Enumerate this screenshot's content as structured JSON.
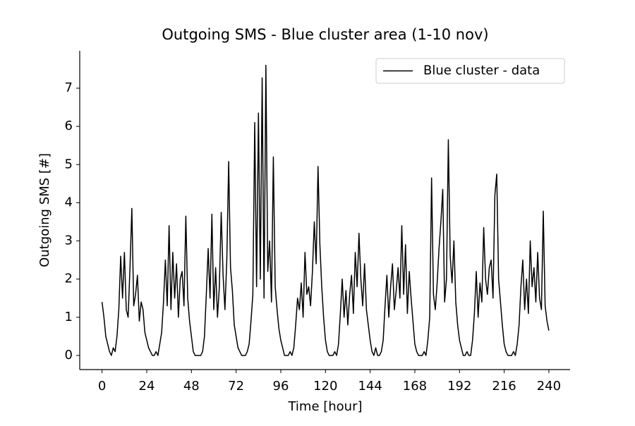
{
  "chart_data": {
    "type": "line",
    "title": "Outgoing SMS - Blue cluster area (1-10 nov)",
    "xlabel": "Time [hour]",
    "ylabel": "Outgoing SMS [#]",
    "legend": "upper right",
    "xlim": [
      -12,
      251.4
    ],
    "ylim": [
      -0.37,
      7.98
    ],
    "xticks": [
      0,
      24,
      48,
      72,
      96,
      120,
      144,
      168,
      192,
      216,
      240
    ],
    "yticks": [
      0,
      1,
      2,
      3,
      4,
      5,
      6,
      7
    ],
    "x": [
      0,
      1,
      2,
      3,
      4,
      5,
      6,
      7,
      8,
      9,
      10,
      11,
      12,
      13,
      14,
      15,
      16,
      17,
      18,
      19,
      20,
      21,
      22,
      23,
      24,
      25,
      26,
      27,
      28,
      29,
      30,
      31,
      32,
      33,
      34,
      35,
      36,
      37,
      38,
      39,
      40,
      41,
      42,
      43,
      44,
      45,
      46,
      47,
      48,
      49,
      50,
      51,
      52,
      53,
      54,
      55,
      56,
      57,
      58,
      59,
      60,
      61,
      62,
      63,
      64,
      65,
      66,
      67,
      68,
      69,
      70,
      71,
      72,
      73,
      74,
      75,
      76,
      77,
      78,
      79,
      80,
      81,
      82,
      83,
      84,
      85,
      86,
      87,
      88,
      89,
      90,
      91,
      92,
      93,
      94,
      95,
      96,
      97,
      98,
      99,
      100,
      101,
      102,
      103,
      104,
      105,
      106,
      107,
      108,
      109,
      110,
      111,
      112,
      113,
      114,
      115,
      116,
      117,
      118,
      119,
      120,
      121,
      122,
      123,
      124,
      125,
      126,
      127,
      128,
      129,
      130,
      131,
      132,
      133,
      134,
      135,
      136,
      137,
      138,
      139,
      140,
      141,
      142,
      143,
      144,
      145,
      146,
      147,
      148,
      149,
      150,
      151,
      152,
      153,
      154,
      155,
      156,
      157,
      158,
      159,
      160,
      161,
      162,
      163,
      164,
      165,
      166,
      167,
      168,
      169,
      170,
      171,
      172,
      173,
      174,
      175,
      176,
      177,
      178,
      179,
      180,
      181,
      182,
      183,
      184,
      185,
      186,
      187,
      188,
      189,
      190,
      191,
      192,
      193,
      194,
      195,
      196,
      197,
      198,
      199,
      200,
      201,
      202,
      203,
      204,
      205,
      206,
      207,
      208,
      209,
      210,
      211,
      212,
      213,
      214,
      215,
      216,
      217,
      218,
      219,
      220,
      221,
      222,
      223,
      224,
      225,
      226,
      227,
      228,
      229,
      230,
      231,
      232,
      233,
      234,
      235,
      236,
      237,
      238,
      239,
      240
    ],
    "series": [
      {
        "name": "Blue cluster - data",
        "color": "#000000",
        "values": [
          1.4,
          1.0,
          0.5,
          0.3,
          0.1,
          0.0,
          0.2,
          0.1,
          0.5,
          1.2,
          2.6,
          1.5,
          2.7,
          1.2,
          1.0,
          2.3,
          3.85,
          1.3,
          1.6,
          2.1,
          0.9,
          1.4,
          1.2,
          0.6,
          0.4,
          0.2,
          0.1,
          0.0,
          0.0,
          0.1,
          0.0,
          0.3,
          0.6,
          1.4,
          2.5,
          1.3,
          3.4,
          1.2,
          2.7,
          1.5,
          2.4,
          1.0,
          2.0,
          2.2,
          1.3,
          3.65,
          1.5,
          0.9,
          0.5,
          0.1,
          0.0,
          0.0,
          0.0,
          0.0,
          0.1,
          0.5,
          1.6,
          2.8,
          1.5,
          3.7,
          1.2,
          2.3,
          1.0,
          1.8,
          3.75,
          2.1,
          1.2,
          2.5,
          5.08,
          2.3,
          1.7,
          0.8,
          0.5,
          0.2,
          0.1,
          0.0,
          0.0,
          0.0,
          0.1,
          0.3,
          0.9,
          1.6,
          6.1,
          1.8,
          6.35,
          2.0,
          7.27,
          1.5,
          7.6,
          2.2,
          3.0,
          1.4,
          5.2,
          1.8,
          1.2,
          0.7,
          0.4,
          0.2,
          0.0,
          0.0,
          0.0,
          0.1,
          0.0,
          0.2,
          0.8,
          1.5,
          1.2,
          1.9,
          1.0,
          2.7,
          1.6,
          1.8,
          1.3,
          2.2,
          3.5,
          2.4,
          4.95,
          2.9,
          1.8,
          1.0,
          0.4,
          0.1,
          0.0,
          0.0,
          0.0,
          0.1,
          0.0,
          0.3,
          1.1,
          2.0,
          1.0,
          1.7,
          0.8,
          1.6,
          2.1,
          1.1,
          2.7,
          1.8,
          3.2,
          2.0,
          1.3,
          2.4,
          1.2,
          0.8,
          0.4,
          0.1,
          0.0,
          0.2,
          0.0,
          0.0,
          0.1,
          0.4,
          1.3,
          2.1,
          1.0,
          1.8,
          2.4,
          1.2,
          1.7,
          2.3,
          1.5,
          3.4,
          1.6,
          2.9,
          1.1,
          2.2,
          1.5,
          0.9,
          0.3,
          0.1,
          0.0,
          0.0,
          0.0,
          0.1,
          0.0,
          0.4,
          1.0,
          4.65,
          1.6,
          1.2,
          1.9,
          2.8,
          3.5,
          4.35,
          1.4,
          2.0,
          5.65,
          2.6,
          1.9,
          3.0,
          1.4,
          0.8,
          0.4,
          0.2,
          0.0,
          0.0,
          0.1,
          0.0,
          0.0,
          0.4,
          1.1,
          2.2,
          1.0,
          1.9,
          1.4,
          3.35,
          2.0,
          1.6,
          2.3,
          2.5,
          1.5,
          4.2,
          4.75,
          2.0,
          1.4,
          0.8,
          0.3,
          0.1,
          0.0,
          0.0,
          0.0,
          0.1,
          0.0,
          0.3,
          0.8,
          1.8,
          2.5,
          1.2,
          2.0,
          1.1,
          3.0,
          1.8,
          2.3,
          1.4,
          2.7,
          1.5,
          1.2,
          3.78,
          1.3,
          0.9,
          0.65
        ]
      }
    ]
  }
}
